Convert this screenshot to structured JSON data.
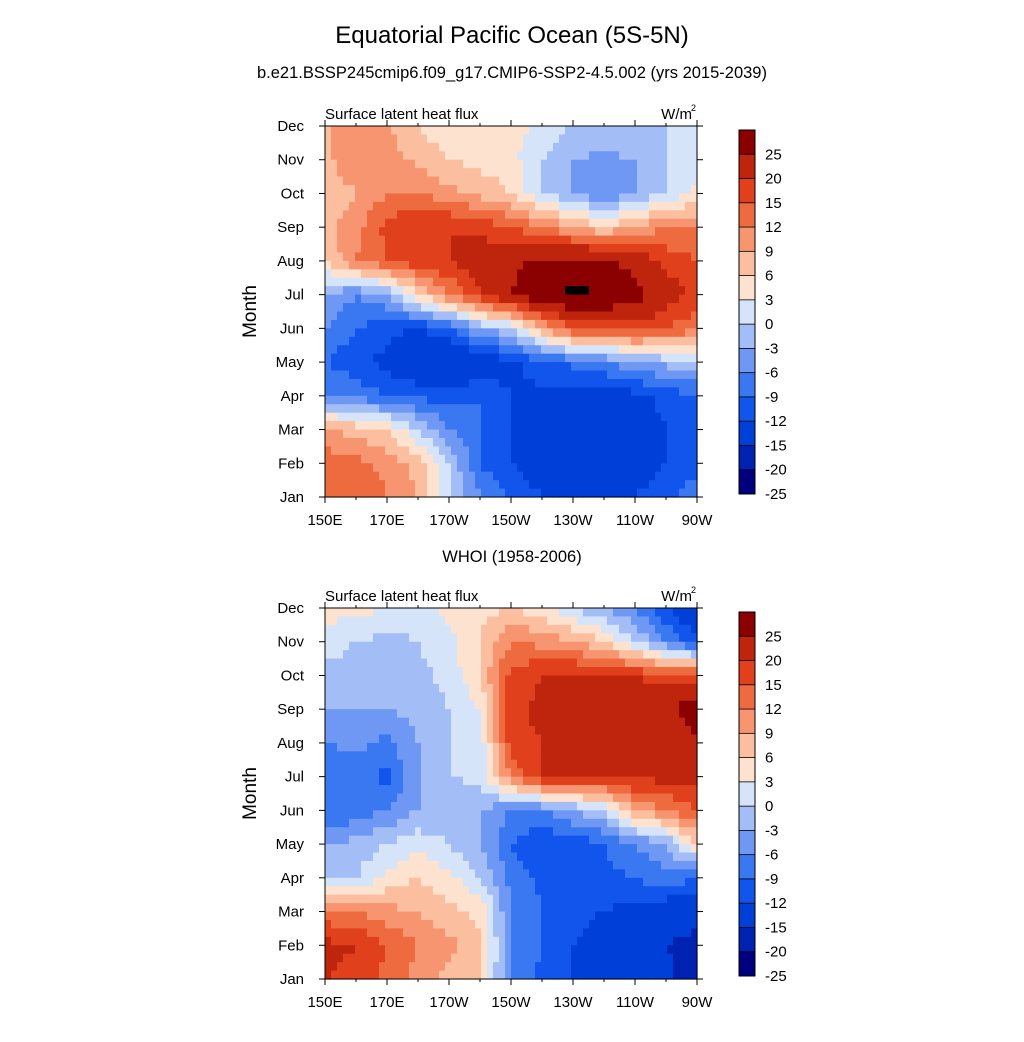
{
  "title": "Equatorial Pacific Ocean (5S-5N)",
  "subtitle": "b.e21.BSSP245cmip6.f09_g17.CMIP6-SSP2-4.5.002 (yrs 2015-2039)",
  "colorbar": {
    "labels": [
      "25",
      "20",
      "15",
      "12",
      "9",
      "6",
      "3",
      "0",
      "-3",
      "-6",
      "-9",
      "-12",
      "-15",
      "-20",
      "-25"
    ],
    "levels": [
      -25,
      -20,
      -15,
      -12,
      -9,
      -6,
      -3,
      0,
      3,
      6,
      9,
      12,
      15,
      20,
      25
    ],
    "colors": [
      "#00007f",
      "#0022b3",
      "#0040d8",
      "#1155ec",
      "#3a78f2",
      "#6f98f4",
      "#a3bdf6",
      "#d6e4fa",
      "#fde2cf",
      "#fbbf9f",
      "#f69570",
      "#ee6b3f",
      "#e0401b",
      "#bf250d",
      "#8b0000"
    ]
  },
  "chart_data": [
    {
      "type": "heatmap",
      "panel_title": "",
      "left_label": "Surface latent heat flux",
      "units_base": "W/m",
      "units_sup": "2",
      "ylabel": "Month",
      "x_ticks": [
        "150E",
        "170E",
        "170W",
        "150W",
        "130W",
        "110W",
        "90W"
      ],
      "x_values": [
        150,
        170,
        190,
        210,
        230,
        250,
        270
      ],
      "xlim": [
        150,
        270
      ],
      "y_ticks": [
        "Jan",
        "Feb",
        "Mar",
        "Apr",
        "May",
        "Jun",
        "Jul",
        "Aug",
        "Sep",
        "Oct",
        "Nov",
        "Dec"
      ],
      "x": [
        150,
        160,
        170,
        180,
        190,
        200,
        210,
        220,
        230,
        240,
        250,
        260,
        270
      ],
      "z": [
        [
          12,
          12,
          9,
          6,
          -3,
          -9,
          -12,
          -15,
          -17,
          -16,
          -15,
          -13,
          -10
        ],
        [
          11,
          10,
          8,
          5,
          -3,
          -12,
          -15,
          -18,
          -19,
          -18,
          -17,
          -15,
          -13
        ],
        [
          6,
          5,
          3,
          -3,
          -9,
          -12,
          -15,
          -18,
          -18,
          -18,
          -17,
          -15,
          -13
        ],
        [
          -9,
          -10,
          -12,
          -13,
          -13,
          -12,
          -15,
          -16,
          -17,
          -18,
          -16,
          -14,
          -12
        ],
        [
          -12,
          -14,
          -16,
          -19,
          -21,
          -18,
          -16,
          -13,
          -11,
          -9,
          -7,
          -5,
          -4
        ],
        [
          -9,
          -12,
          -14,
          -15,
          -12,
          -6,
          -3,
          6,
          12,
          13,
          14,
          12,
          10
        ],
        [
          -6,
          -9,
          -6,
          3,
          9,
          15,
          20,
          24,
          26,
          25,
          22,
          17,
          14
        ],
        [
          3,
          9,
          12,
          14,
          15,
          17,
          19,
          21,
          22,
          21,
          18,
          14,
          12
        ],
        [
          5,
          8,
          13,
          15,
          15,
          14,
          12,
          9,
          6,
          3,
          6,
          9,
          9
        ],
        [
          3,
          6,
          9,
          9,
          7,
          5,
          3,
          -3,
          -6,
          -9,
          -6,
          -3,
          1
        ],
        [
          5,
          9,
          8,
          5,
          3,
          2,
          1,
          -3,
          -6,
          -7,
          -6,
          -3,
          -1
        ],
        [
          6,
          6,
          6,
          3,
          1,
          3,
          2,
          -1,
          -3,
          -3,
          -3,
          -3,
          -1
        ]
      ]
    },
    {
      "type": "heatmap",
      "panel_title": "WHOI (1958-2006)",
      "left_label": "Surface latent heat flux",
      "units_base": "W/m",
      "units_sup": "2",
      "ylabel": "Month",
      "x_ticks": [
        "150E",
        "170E",
        "170W",
        "150W",
        "130W",
        "110W",
        "90W"
      ],
      "x_values": [
        150,
        170,
        190,
        210,
        230,
        250,
        270
      ],
      "xlim": [
        150,
        270
      ],
      "y_ticks": [
        "Jan",
        "Feb",
        "Mar",
        "Apr",
        "May",
        "Jun",
        "Jul",
        "Aug",
        "Sep",
        "Oct",
        "Nov",
        "Dec"
      ],
      "x": [
        150,
        160,
        170,
        180,
        190,
        200,
        210,
        220,
        230,
        240,
        250,
        260,
        270
      ],
      "z": [
        [
          15,
          14,
          11,
          8,
          5,
          3,
          -9,
          -13,
          -15,
          -17,
          -18,
          -19,
          -22
        ],
        [
          16,
          15,
          12,
          9,
          7,
          4,
          -9,
          -12,
          -15,
          -17,
          -19,
          -20,
          -21
        ],
        [
          10,
          9,
          7,
          6,
          4,
          2,
          -9,
          -12,
          -14,
          -15,
          -16,
          -18,
          -19
        ],
        [
          -3,
          -3,
          1,
          3,
          1,
          -3,
          -10,
          -13,
          -14,
          -13,
          -12,
          -10,
          -12
        ],
        [
          -6,
          -5,
          -3,
          -1,
          -3,
          -6,
          -12,
          -15,
          -14,
          -12,
          -9,
          -6,
          3
        ],
        [
          -12,
          -11,
          -9,
          -6,
          -6,
          -6,
          -9,
          -9,
          -6,
          -3,
          6,
          9,
          12
        ],
        [
          -12,
          -11,
          -13,
          -6,
          -3,
          -2,
          9,
          15,
          16,
          16,
          16,
          16,
          17
        ],
        [
          -9,
          -8,
          -10,
          -6,
          -3,
          -2,
          14,
          15,
          17,
          16,
          15,
          16,
          19
        ],
        [
          -6,
          -6,
          -6,
          -5,
          -3,
          0,
          14,
          16,
          18,
          17,
          17,
          19,
          23
        ],
        [
          -4,
          -5,
          -6,
          -4,
          -2,
          3,
          13,
          15,
          16,
          16,
          15,
          13,
          14
        ],
        [
          -1,
          -3,
          -4,
          -3,
          -1,
          3,
          9,
          8,
          6,
          3,
          -3,
          -9,
          -14
        ],
        [
          1,
          1,
          0,
          -1,
          1,
          2,
          3,
          1,
          -3,
          -6,
          -9,
          -15,
          -20
        ]
      ]
    }
  ]
}
